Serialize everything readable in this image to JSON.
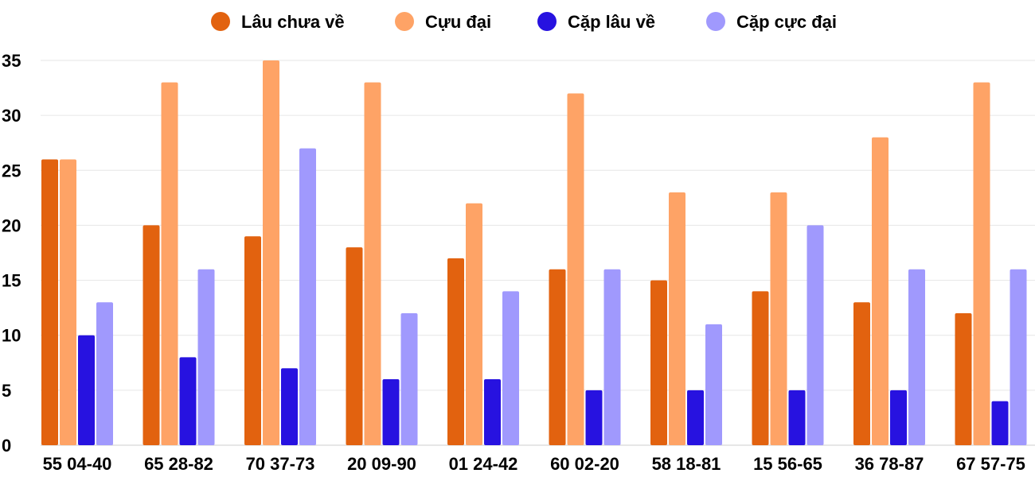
{
  "chart_data": {
    "type": "bar",
    "title": "",
    "xlabel": "",
    "ylabel": "",
    "ylim": [
      0,
      35
    ],
    "yticks": [
      0,
      5,
      10,
      15,
      20,
      25,
      30,
      35
    ],
    "grid": true,
    "legend_position": "top",
    "categories": [
      "55 04-40",
      "65 28-82",
      "70 37-73",
      "20 09-90",
      "01 24-42",
      "60 02-20",
      "58 18-81",
      "15 56-65",
      "36 78-87",
      "67 57-75"
    ],
    "series": [
      {
        "name": "Lâu chưa về",
        "color": "#e2620f",
        "values": [
          26,
          20,
          19,
          18,
          17,
          16,
          15,
          14,
          13,
          12
        ]
      },
      {
        "name": "Cựu đại",
        "color": "#fea366",
        "values": [
          26,
          33,
          35,
          33,
          22,
          32,
          23,
          23,
          28,
          33
        ]
      },
      {
        "name": "Cặp lâu về",
        "color": "#2712e0",
        "values": [
          10,
          8,
          7,
          6,
          6,
          5,
          5,
          5,
          5,
          4
        ]
      },
      {
        "name": "Cặp cực đại",
        "color": "#a099fd",
        "values": [
          13,
          16,
          27,
          12,
          14,
          16,
          11,
          20,
          16,
          16
        ]
      }
    ]
  }
}
